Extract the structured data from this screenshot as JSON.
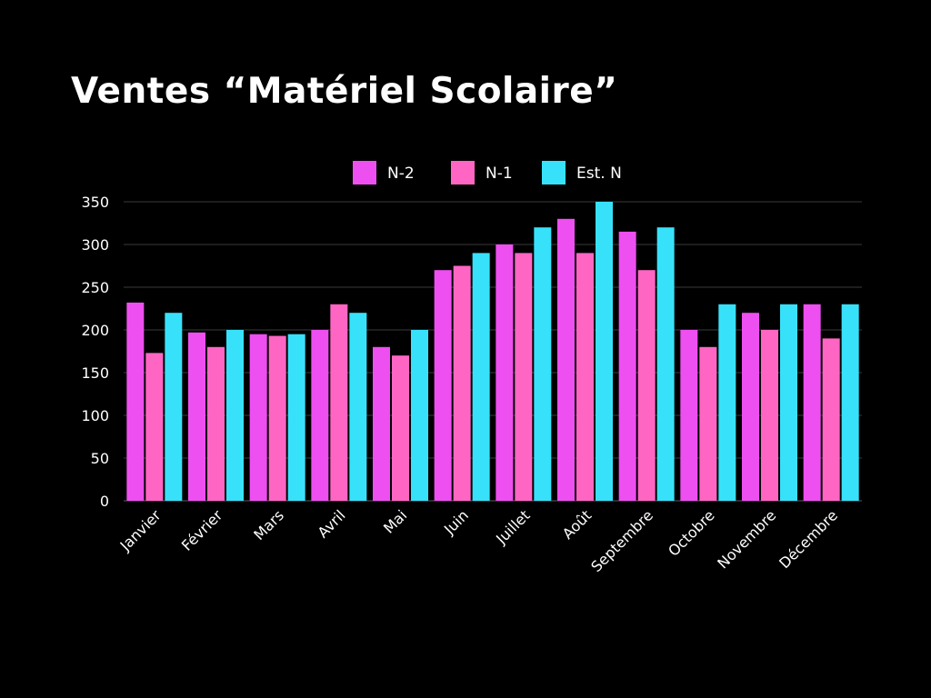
{
  "chart_data": {
    "type": "bar",
    "title": "Ventes “Matériel Scolaire”",
    "xlabel": "",
    "ylabel": "",
    "ylim": [
      0,
      350
    ],
    "yticks": [
      0,
      50,
      100,
      150,
      200,
      250,
      300,
      350
    ],
    "grid": true,
    "legend_position": "top-center",
    "categories": [
      "Janvier",
      "Février",
      "Mars",
      "Avril",
      "Mai",
      "Juin",
      "Juillet",
      "Août",
      "Septembre",
      "Octobre",
      "Novembre",
      "Décembre"
    ],
    "series": [
      {
        "name": "N-2",
        "color": "#ee4ff0",
        "values": [
          232,
          197,
          195,
          200,
          180,
          270,
          300,
          330,
          315,
          200,
          220,
          230
        ]
      },
      {
        "name": "N-1",
        "color": "#ff66c4",
        "values": [
          173,
          180,
          193,
          230,
          170,
          275,
          290,
          290,
          270,
          180,
          200,
          190
        ]
      },
      {
        "name": "Est. N",
        "color": "#38e1fa",
        "values": [
          220,
          200,
          195,
          220,
          200,
          290,
          320,
          350,
          320,
          230,
          230,
          230
        ]
      }
    ]
  },
  "colors": {
    "background": "#000000",
    "text": "#ffffff",
    "grid": "#3a3a3a"
  }
}
